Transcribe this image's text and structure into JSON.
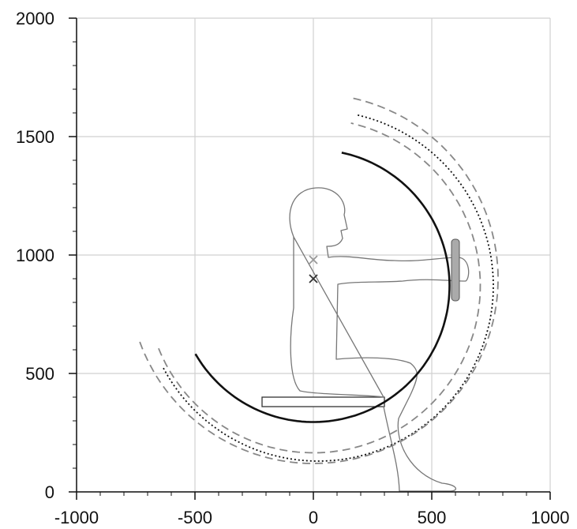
{
  "chart_data": {
    "type": "arcs",
    "xlim": [
      -1000,
      1000
    ],
    "ylim": [
      0,
      2000
    ],
    "xticks": [
      -1000,
      -500,
      0,
      500,
      1000
    ],
    "yticks": [
      0,
      500,
      1000,
      1500,
      2000
    ],
    "minor_tick_step": 100,
    "grid": true,
    "arcs": [
      {
        "center": [
          0,
          870
        ],
        "radius": 575,
        "from": -150,
        "to": 78,
        "style": "solid",
        "color": "#111111"
      },
      {
        "center": [
          0,
          870
        ],
        "radius": 705,
        "from": -158,
        "to": 77,
        "style": "dashed",
        "color": "#888888"
      },
      {
        "center": [
          20,
          870
        ],
        "radius": 740,
        "from": -152,
        "to": 77,
        "style": "dotted",
        "color": "#111111"
      },
      {
        "center": [
          0,
          900
        ],
        "radius": 780,
        "from": -160,
        "to": 78,
        "style": "dashed",
        "color": "#888888"
      }
    ],
    "markers": [
      {
        "x": 0,
        "y": 980,
        "color": "#999999"
      },
      {
        "x": 0,
        "y": 900,
        "color": "#333333"
      }
    ]
  }
}
